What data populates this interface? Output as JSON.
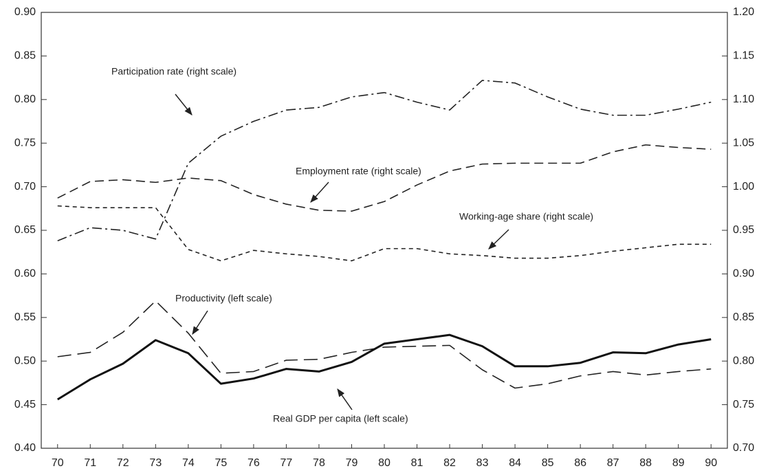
{
  "chart_data": {
    "type": "line",
    "x": [
      70,
      71,
      72,
      73,
      74,
      75,
      76,
      77,
      78,
      79,
      80,
      81,
      82,
      83,
      84,
      85,
      86,
      87,
      88,
      89,
      90
    ],
    "xlim": [
      69.5,
      90.5
    ],
    "xticks": [
      70,
      71,
      72,
      73,
      74,
      75,
      76,
      77,
      78,
      79,
      80,
      81,
      82,
      83,
      84,
      85,
      86,
      87,
      88,
      89,
      90
    ],
    "ylim": [
      0.4,
      0.9
    ],
    "yticks": [
      {
        "value": 0.4,
        "label": "0.40"
      },
      {
        "value": 0.45,
        "label": "0.45"
      },
      {
        "value": 0.5,
        "label": "0.50"
      },
      {
        "value": 0.55,
        "label": "0.55"
      },
      {
        "value": 0.6,
        "label": "0.60"
      },
      {
        "value": 0.65,
        "label": "0.65"
      },
      {
        "value": 0.7,
        "label": "0.70"
      },
      {
        "value": 0.75,
        "label": "0.75"
      },
      {
        "value": 0.8,
        "label": "0.80"
      },
      {
        "value": 0.85,
        "label": "0.85"
      },
      {
        "value": 0.9,
        "label": "0.90"
      }
    ],
    "y2lim": [
      0.7,
      1.2
    ],
    "y2ticks": [
      {
        "value": 0.7,
        "label": "0.70"
      },
      {
        "value": 0.75,
        "label": "0.75"
      },
      {
        "value": 0.8,
        "label": "0.80"
      },
      {
        "value": 0.85,
        "label": "0.85"
      },
      {
        "value": 0.9,
        "label": "0.90"
      },
      {
        "value": 0.95,
        "label": "0.95"
      },
      {
        "value": 1.0,
        "label": "1.00"
      },
      {
        "value": 1.05,
        "label": "1.05"
      },
      {
        "value": 1.1,
        "label": "1.10"
      },
      {
        "value": 1.15,
        "label": "1.15"
      },
      {
        "value": 1.2,
        "label": "1.20"
      }
    ],
    "series": [
      {
        "color": "#222",
        "style": "dashdot",
        "axis": "y2",
        "values": [
          0.938,
          0.953,
          0.95,
          0.94,
          1.027,
          1.058,
          1.075,
          1.088,
          1.091,
          1.103,
          1.108,
          1.097,
          1.088,
          1.122,
          1.119,
          1.103,
          1.089,
          1.082,
          1.082,
          1.089,
          1.097
        ]
      },
      {
        "color": "#222",
        "style": "dash",
        "axis": "y2",
        "values": [
          0.987,
          1.006,
          1.008,
          1.005,
          1.01,
          1.007,
          0.991,
          0.98,
          0.973,
          0.972,
          0.983,
          1.002,
          1.018,
          1.026,
          1.027,
          1.027,
          1.027,
          1.04,
          1.048,
          1.045,
          1.043
        ]
      },
      {
        "color": "#222",
        "style": "dot",
        "axis": "y2",
        "values": [
          0.978,
          0.976,
          0.976,
          0.976,
          0.928,
          0.915,
          0.927,
          0.923,
          0.92,
          0.915,
          0.929,
          0.929,
          0.923,
          0.921,
          0.918,
          0.918,
          0.921,
          0.926,
          0.93,
          0.934,
          0.934
        ]
      },
      {
        "color": "#222",
        "style": "longdash",
        "values": [
          0.505,
          0.51,
          0.533,
          0.569,
          0.532,
          0.486,
          0.488,
          0.501,
          0.502,
          0.51,
          0.516,
          0.517,
          0.518,
          0.49,
          0.469,
          0.474,
          0.483,
          0.488,
          0.484,
          0.488,
          0.491
        ]
      },
      {
        "color": "#111",
        "style": "solid",
        "values": [
          0.456,
          0.479,
          0.497,
          0.524,
          0.509,
          0.474,
          0.48,
          0.491,
          0.488,
          0.499,
          0.52,
          0.525,
          0.53,
          0.517,
          0.494,
          0.494,
          0.498,
          0.51,
          0.509,
          0.519,
          0.525
        ]
      }
    ],
    "annotations": [
      "Participation rate (right scale)",
      "Employment rate (right scale)",
      "Working-age share (right scale)",
      "Productivity (left scale)",
      "Real GDP per capita (left scale)"
    ]
  }
}
